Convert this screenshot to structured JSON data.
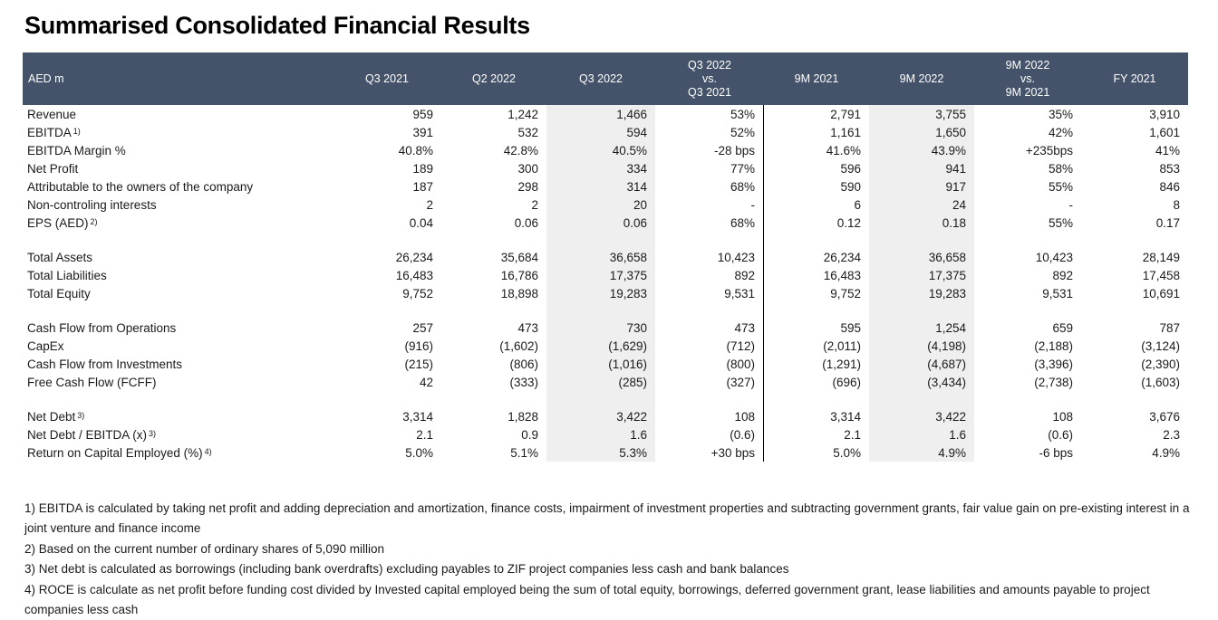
{
  "title": "Summarised Consolidated Financial Results",
  "colors": {
    "header_bg": "#445369",
    "header_text": "#FFFFFF",
    "highlight_column_bg": "#EFEFEF",
    "divider_line": "#000000",
    "text": "#1A1A1A"
  },
  "table": {
    "columns": [
      {
        "id": "aed-m",
        "label_lines": [
          "AED m"
        ],
        "align": "left"
      },
      {
        "id": "q3-2021",
        "label_lines": [
          "Q3 2021"
        ]
      },
      {
        "id": "q2-2022",
        "label_lines": [
          "Q2 2022"
        ]
      },
      {
        "id": "q3-2022",
        "label_lines": [
          "Q3 2022"
        ],
        "highlight": true
      },
      {
        "id": "q3-2022-vs-q3-2021",
        "label_lines": [
          "Q3 2022",
          "vs.",
          "Q3 2021"
        ],
        "divider_after": true
      },
      {
        "id": "9m-2021",
        "label_lines": [
          "9M 2021"
        ]
      },
      {
        "id": "9m-2022",
        "label_lines": [
          "9M 2022"
        ],
        "highlight": true
      },
      {
        "id": "9m-2022-vs-9m-2021",
        "label_lines": [
          "9M 2022",
          "vs.",
          "9M 2021"
        ]
      },
      {
        "id": "fy-2021",
        "label_lines": [
          "FY 2021"
        ]
      }
    ],
    "sections": [
      {
        "name": "income-statement",
        "rows": [
          {
            "label": "Revenue",
            "values": [
              "959",
              "1,242",
              "1,466",
              "53%",
              "2,791",
              "3,755",
              "35%",
              "3,910"
            ]
          },
          {
            "label": "EBITDA",
            "sup": "1)",
            "values": [
              "391",
              "532",
              "594",
              "52%",
              "1,161",
              "1,650",
              "42%",
              "1,601"
            ]
          },
          {
            "label": "EBITDA Margin %",
            "values": [
              "40.8%",
              "42.8%",
              "40.5%",
              "-28 bps",
              "41.6%",
              "43.9%",
              "+235bps",
              "41%"
            ]
          },
          {
            "label": "Net Profit",
            "values": [
              "189",
              "300",
              "334",
              "77%",
              "596",
              "941",
              "58%",
              "853"
            ]
          },
          {
            "label": "Attributable to the owners of the company",
            "values": [
              "187",
              "298",
              "314",
              "68%",
              "590",
              "917",
              "55%",
              "846"
            ]
          },
          {
            "label": "Non-controling interests",
            "values": [
              "2",
              "2",
              "20",
              "-",
              "6",
              "24",
              "-",
              "8"
            ]
          },
          {
            "label": "EPS (AED)",
            "sup": "2)",
            "values": [
              "0.04",
              "0.06",
              "0.06",
              "68%",
              "0.12",
              "0.18",
              "55%",
              "0.17"
            ]
          }
        ]
      },
      {
        "name": "balance-sheet",
        "rows": [
          {
            "label": "Total Assets",
            "values": [
              "26,234",
              "35,684",
              "36,658",
              "10,423",
              "26,234",
              "36,658",
              "10,423",
              "28,149"
            ]
          },
          {
            "label": "Total Liabilities",
            "values": [
              "16,483",
              "16,786",
              "17,375",
              "892",
              "16,483",
              "17,375",
              "892",
              "17,458"
            ]
          },
          {
            "label": "Total Equity",
            "values": [
              "9,752",
              "18,898",
              "19,283",
              "9,531",
              "9,752",
              "19,283",
              "9,531",
              "10,691"
            ]
          }
        ]
      },
      {
        "name": "cash-flow",
        "rows": [
          {
            "label": "Cash Flow from Operations",
            "values": [
              "257",
              "473",
              "730",
              "473",
              "595",
              "1,254",
              "659",
              "787"
            ]
          },
          {
            "label": "CapEx",
            "values": [
              "(916)",
              "(1,602)",
              "(1,629)",
              "(712)",
              "(2,011)",
              "(4,198)",
              "(2,188)",
              "(3,124)"
            ]
          },
          {
            "label": "Cash Flow from Investments",
            "values": [
              "(215)",
              "(806)",
              "(1,016)",
              "(800)",
              "(1,291)",
              "(4,687)",
              "(3,396)",
              "(2,390)"
            ]
          },
          {
            "label": "Free Cash Flow (FCFF)",
            "values": [
              "42",
              "(333)",
              "(285)",
              "(327)",
              "(696)",
              "(3,434)",
              "(2,738)",
              "(1,603)"
            ]
          }
        ]
      },
      {
        "name": "leverage-returns",
        "rows": [
          {
            "label": "Net Debt",
            "sup": "3)",
            "values": [
              "3,314",
              "1,828",
              "3,422",
              "108",
              "3,314",
              "3,422",
              "108",
              "3,676"
            ]
          },
          {
            "label": "Net Debt / EBITDA (x)",
            "sup": "3)",
            "values": [
              "2.1",
              "0.9",
              "1.6",
              "(0.6)",
              "2.1",
              "1.6",
              "(0.6)",
              "2.3"
            ]
          },
          {
            "label": "Return on Capital Employed (%)",
            "sup": "4)",
            "values": [
              "5.0%",
              "5.1%",
              "5.3%",
              "+30 bps",
              "5.0%",
              "4.9%",
              "-6 bps",
              "4.9%"
            ]
          }
        ]
      }
    ]
  },
  "footnotes": [
    "1) EBITDA is calculated by taking net profit and adding depreciation and amortization, finance costs, impairment of investment properties and subtracting government grants, fair value gain on pre-existing interest in a joint venture and finance income",
    "2) Based on the current number of ordinary shares of 5,090 million",
    "3) Net debt is calculated as borrowings (including bank overdrafts) excluding payables to ZIF project companies less cash and bank balances",
    "4) ROCE is calculate as net profit before funding cost divided by Invested capital employed being the sum of total equity, borrowings, deferred government grant, lease liabilities and amounts payable to project companies less cash"
  ]
}
